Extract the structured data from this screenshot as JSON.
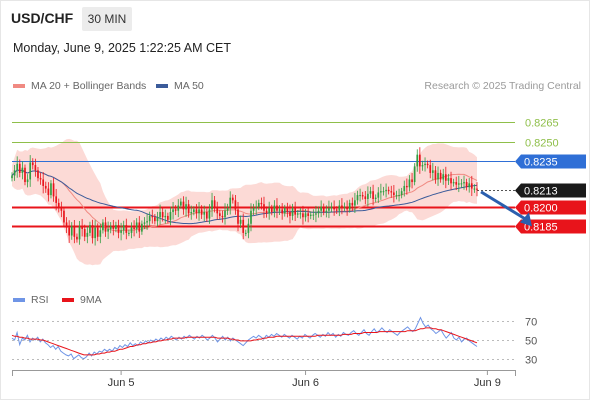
{
  "header": {
    "symbol": "USD/CHF",
    "timeframe": "30 MIN",
    "datetime": "Monday, June 9, 2025 1:22:25 AM CET",
    "copyright": "Research © 2025 Trading Central"
  },
  "colors": {
    "support_resistance": "#e8141b",
    "pivot": "#2f6fd6",
    "target": "#8fbf4a",
    "price": "#1a1a1a",
    "candle_up": "#2f9e41",
    "candle_down": "#e8141b",
    "bollinger_fill": "#fbd3cf",
    "ma20": "#f08a82",
    "ma50": "#3b5b9a",
    "rsi": "#6f95e6",
    "rsi_ma": "#e8141b",
    "arrow": "#2b5fae"
  },
  "chart_data": [
    {
      "type": "candlestick",
      "title": "USD/CHF",
      "legend": [
        "MA 20 + Bollinger Bands",
        "MA 50"
      ],
      "legend_position": "top-left",
      "ylim": [
        0.815,
        0.8285
      ],
      "levels": [
        {
          "label": "0.8265",
          "value": 0.8265,
          "role": "target"
        },
        {
          "label": "0.8250",
          "value": 0.825,
          "role": "target"
        },
        {
          "label": "0.8235",
          "value": 0.8235,
          "role": "pivot"
        },
        {
          "label": "0.8213",
          "value": 0.8213,
          "role": "price"
        },
        {
          "label": "0.8200",
          "value": 0.82,
          "role": "support"
        },
        {
          "label": "0.8185",
          "value": 0.8185,
          "role": "support"
        }
      ],
      "x_ticks": [
        "Jun 5",
        "Jun 6",
        "Jun 9"
      ],
      "close": [
        0.8224,
        0.8228,
        0.8233,
        0.8226,
        0.823,
        0.8219,
        0.8221,
        0.8234,
        0.8232,
        0.8228,
        0.8222,
        0.8221,
        0.8216,
        0.8214,
        0.8209,
        0.8218,
        0.8208,
        0.8203,
        0.8199,
        0.8197,
        0.8188,
        0.8184,
        0.8178,
        0.8185,
        0.8177,
        0.8175,
        0.8185,
        0.8183,
        0.8177,
        0.818,
        0.8186,
        0.8176,
        0.8184,
        0.8177,
        0.8182,
        0.8188,
        0.8181,
        0.8183,
        0.8185,
        0.8183,
        0.8186,
        0.818,
        0.8182,
        0.8186,
        0.818,
        0.818,
        0.8184,
        0.8183,
        0.8188,
        0.8181,
        0.8187,
        0.8188,
        0.8189,
        0.8193,
        0.8192,
        0.8189,
        0.8192,
        0.8196,
        0.8192,
        0.8193,
        0.819,
        0.8196,
        0.8198,
        0.8197,
        0.8201,
        0.8204,
        0.8198,
        0.8202,
        0.8195,
        0.8196,
        0.8198,
        0.8195,
        0.8198,
        0.8194,
        0.8196,
        0.8191,
        0.8198,
        0.8205,
        0.8199,
        0.8195,
        0.8193,
        0.8192,
        0.8197,
        0.8199,
        0.8207,
        0.8205,
        0.8198,
        0.8187,
        0.819,
        0.818,
        0.818,
        0.8187,
        0.8197,
        0.8199,
        0.82,
        0.8203,
        0.8202,
        0.8197,
        0.8195,
        0.8199,
        0.8196,
        0.8201,
        0.8197,
        0.8198,
        0.8195,
        0.8199,
        0.8196,
        0.8193,
        0.8199,
        0.8194,
        0.8195,
        0.8195,
        0.8192,
        0.8195,
        0.8193,
        0.8194,
        0.8194,
        0.8195,
        0.8197,
        0.82,
        0.8196,
        0.8197,
        0.8199,
        0.82,
        0.8198,
        0.8197,
        0.8201,
        0.82,
        0.82,
        0.8198,
        0.8203,
        0.8201,
        0.8205,
        0.8209,
        0.8209,
        0.8208,
        0.8206,
        0.821,
        0.8212,
        0.8206,
        0.8207,
        0.8211,
        0.8212,
        0.8212,
        0.8213,
        0.8212,
        0.8211,
        0.8209,
        0.8209,
        0.8209,
        0.8212,
        0.8216,
        0.8215,
        0.8221,
        0.8219,
        0.8231,
        0.824,
        0.8231,
        0.8232,
        0.8233,
        0.8232,
        0.8226,
        0.8228,
        0.8221,
        0.8226,
        0.8221,
        0.8225,
        0.822,
        0.8222,
        0.8218,
        0.8219,
        0.8217,
        0.8218,
        0.8218,
        0.8219,
        0.8215,
        0.8218,
        0.8214,
        0.8214,
        0.8213
      ],
      "x_tick_index": [
        42,
        113,
        183
      ],
      "target_index": 194
    },
    {
      "type": "line",
      "legend": [
        "RSI",
        "9MA"
      ],
      "legend_position": "top-left",
      "ylim": [
        20,
        80
      ],
      "y_ticks": [
        70,
        50,
        30
      ],
      "series": [
        {
          "name": "RSI",
          "values": [
            52,
            50,
            58,
            45,
            52,
            50,
            55,
            48,
            52,
            50,
            53,
            48,
            51,
            47,
            45,
            42,
            44,
            40,
            43,
            38,
            36,
            34,
            33,
            35,
            30,
            32,
            34,
            31,
            30,
            32,
            36,
            33,
            37,
            35,
            38,
            37,
            40,
            38,
            40,
            38,
            42,
            40,
            44,
            42,
            45,
            43,
            47,
            44,
            46,
            44,
            48,
            46,
            49,
            47,
            50,
            48,
            51,
            49,
            52,
            50,
            53,
            51,
            54,
            52,
            50,
            53,
            51,
            54,
            52,
            55,
            53,
            51,
            54,
            52,
            55,
            53,
            50,
            52,
            55,
            52,
            48,
            51,
            54,
            50,
            53,
            49,
            52,
            50,
            48,
            46,
            44,
            47,
            50,
            52,
            54,
            52,
            55,
            53,
            51,
            55,
            53,
            56,
            54,
            57,
            55,
            53,
            56,
            54,
            52,
            55,
            53,
            51,
            54,
            52,
            56,
            54,
            52,
            55,
            57,
            55,
            53,
            56,
            54,
            58,
            55,
            57,
            53,
            56,
            54,
            58,
            56,
            55,
            58,
            60,
            57,
            55,
            58,
            61,
            57,
            55,
            59,
            62,
            58,
            60,
            63,
            60,
            58,
            61,
            59,
            57,
            55,
            58,
            60,
            62,
            64,
            61,
            59,
            62,
            68,
            74,
            68,
            64,
            66,
            62,
            60,
            57,
            59,
            61,
            56,
            52,
            55,
            58,
            52,
            50,
            53,
            48,
            51,
            52,
            49,
            47,
            45,
            43
          ]
        },
        {
          "name": "9MA",
          "values": [
            55,
            54,
            54,
            53,
            53,
            52,
            52,
            51,
            51,
            51,
            51,
            50,
            50,
            49,
            48,
            47,
            46,
            45,
            44,
            43,
            42,
            41,
            40,
            39,
            38,
            37,
            36,
            35,
            34,
            34,
            34,
            34,
            34,
            35,
            35,
            36,
            36,
            37,
            37,
            38,
            38,
            39,
            40,
            40,
            41,
            42,
            43,
            43,
            44,
            45,
            45,
            46,
            46,
            47,
            47,
            48,
            48,
            49,
            49,
            50,
            50,
            51,
            51,
            52,
            52,
            52,
            52,
            52,
            53,
            53,
            53,
            53,
            53,
            53,
            53,
            53,
            53,
            53,
            53,
            53,
            52,
            52,
            52,
            52,
            52,
            51,
            51,
            50,
            50,
            49,
            49,
            49,
            49,
            49,
            50,
            50,
            51,
            51,
            52,
            52,
            53,
            53,
            53,
            54,
            54,
            54,
            54,
            54,
            54,
            54,
            54,
            54,
            54,
            54,
            54,
            54,
            54,
            54,
            54,
            55,
            55,
            55,
            55,
            55,
            55,
            55,
            55,
            55,
            55,
            56,
            56,
            56,
            56,
            57,
            57,
            57,
            57,
            58,
            58,
            58,
            58,
            58,
            58,
            59,
            59,
            59,
            59,
            59,
            59,
            59,
            59,
            59,
            59,
            59,
            60,
            60,
            60,
            60,
            61,
            62,
            62,
            63,
            63,
            63,
            62,
            62,
            61,
            61,
            60,
            59,
            58,
            57,
            56,
            55,
            54,
            53,
            52,
            51,
            50,
            49,
            48,
            47
          ]
        }
      ]
    }
  ]
}
